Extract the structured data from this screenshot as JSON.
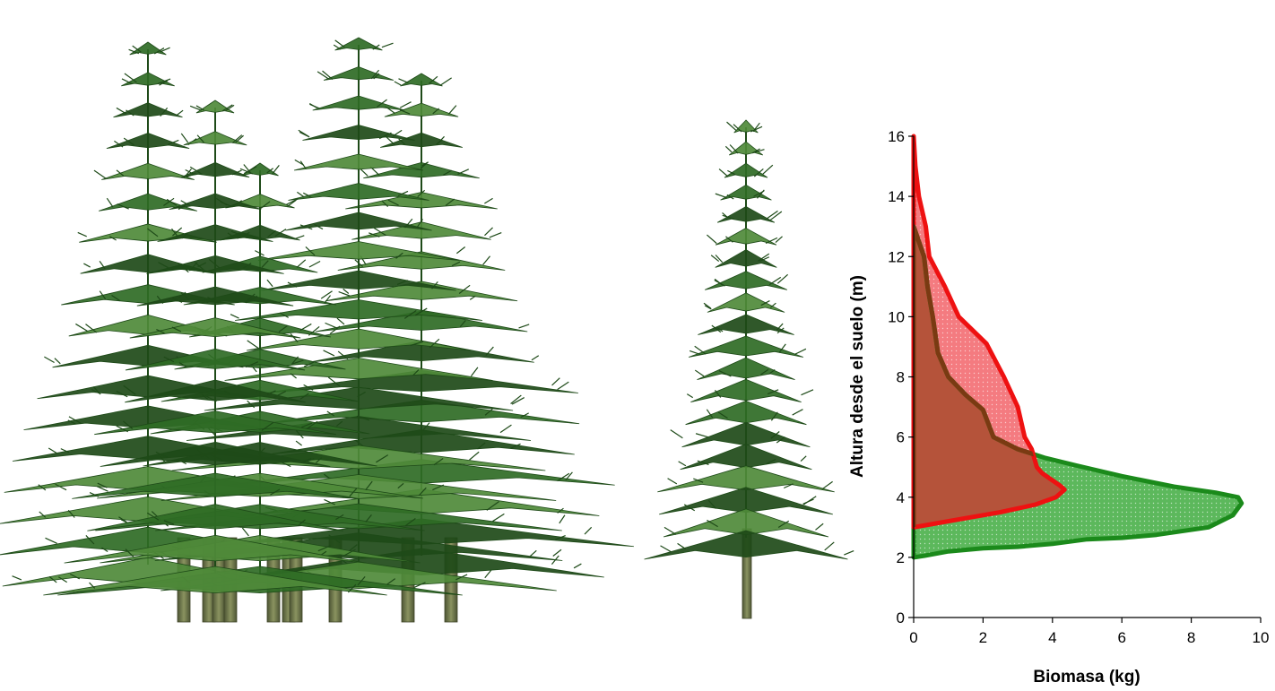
{
  "colors": {
    "background": "#ffffff",
    "trunk": "#6e7748",
    "foliage_dark": "#1e4a18",
    "foliage_mid": "#2f6b25",
    "foliage_light": "#4f8a3a",
    "series_green_line": "#1b8a1b",
    "series_green_fill": "#5cb85c",
    "series_red_line": "#ee1111",
    "series_red_fill": "#f47b80",
    "overlap_fill": "#b5533a",
    "overlap_line": "#7a3a12"
  },
  "illustrations": [
    {
      "name": "tree-cluster",
      "icon": "conifer-group-icon"
    },
    {
      "name": "single-tree",
      "icon": "conifer-icon"
    }
  ],
  "chart_data": {
    "type": "area",
    "xlabel": "Biomasa (kg)",
    "ylabel": "Altura desde el suelo (m)",
    "xlim": [
      0,
      10
    ],
    "ylim": [
      0,
      16
    ],
    "xticks": [
      "0",
      "2",
      "4",
      "6",
      "8",
      "10"
    ],
    "yticks": [
      "0",
      "2",
      "4",
      "6",
      "8",
      "10",
      "12",
      "14",
      "16"
    ],
    "grid": false,
    "legend": "none",
    "series": [
      {
        "color": "#1b8a1b",
        "fill": "#5cb85c",
        "points": [
          {
            "x": 0.0,
            "y": 2.0
          },
          {
            "x": 0.3,
            "y": 2.05
          },
          {
            "x": 1.0,
            "y": 2.2
          },
          {
            "x": 2.0,
            "y": 2.3
          },
          {
            "x": 3.0,
            "y": 2.35
          },
          {
            "x": 4.0,
            "y": 2.45
          },
          {
            "x": 5.0,
            "y": 2.6
          },
          {
            "x": 6.0,
            "y": 2.65
          },
          {
            "x": 7.0,
            "y": 2.75
          },
          {
            "x": 8.5,
            "y": 3.0
          },
          {
            "x": 9.2,
            "y": 3.4
          },
          {
            "x": 9.45,
            "y": 3.8
          },
          {
            "x": 9.35,
            "y": 4.0
          },
          {
            "x": 8.7,
            "y": 4.15
          },
          {
            "x": 7.5,
            "y": 4.35
          },
          {
            "x": 6.0,
            "y": 4.7
          },
          {
            "x": 4.7,
            "y": 5.05
          },
          {
            "x": 3.8,
            "y": 5.3
          },
          {
            "x": 3.0,
            "y": 5.6
          },
          {
            "x": 2.3,
            "y": 6.0
          },
          {
            "x": 2.0,
            "y": 6.9
          },
          {
            "x": 1.5,
            "y": 7.4
          },
          {
            "x": 1.0,
            "y": 8.0
          },
          {
            "x": 0.7,
            "y": 8.8
          },
          {
            "x": 0.55,
            "y": 10.0
          },
          {
            "x": 0.4,
            "y": 11.0
          },
          {
            "x": 0.3,
            "y": 12.0
          },
          {
            "x": 0.15,
            "y": 12.5
          },
          {
            "x": 0.0,
            "y": 13.0
          }
        ]
      },
      {
        "color": "#ee1111",
        "fill": "#f47b80",
        "points": [
          {
            "x": 0.0,
            "y": 3.0
          },
          {
            "x": 0.5,
            "y": 3.1
          },
          {
            "x": 1.5,
            "y": 3.3
          },
          {
            "x": 2.5,
            "y": 3.5
          },
          {
            "x": 3.5,
            "y": 3.75
          },
          {
            "x": 4.1,
            "y": 4.0
          },
          {
            "x": 4.35,
            "y": 4.25
          },
          {
            "x": 4.2,
            "y": 4.4
          },
          {
            "x": 3.7,
            "y": 4.8
          },
          {
            "x": 3.55,
            "y": 5.0
          },
          {
            "x": 3.4,
            "y": 5.6
          },
          {
            "x": 3.2,
            "y": 6.0
          },
          {
            "x": 3.0,
            "y": 7.0
          },
          {
            "x": 2.6,
            "y": 8.0
          },
          {
            "x": 2.1,
            "y": 9.1
          },
          {
            "x": 1.3,
            "y": 10.0
          },
          {
            "x": 0.9,
            "y": 11.0
          },
          {
            "x": 0.45,
            "y": 12.0
          },
          {
            "x": 0.35,
            "y": 13.0
          },
          {
            "x": 0.15,
            "y": 14.0
          },
          {
            "x": 0.05,
            "y": 15.0
          },
          {
            "x": 0.0,
            "y": 16.0
          }
        ]
      }
    ]
  }
}
